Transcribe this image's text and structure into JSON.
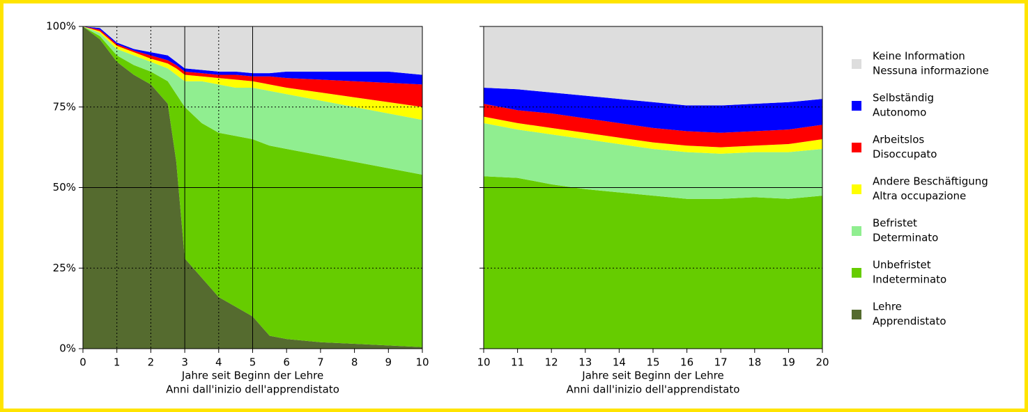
{
  "chart_data": [
    {
      "type": "stacked-area",
      "xlabel": [
        "Jahre seit Beginn der Lehre",
        "Anni dall'inizio dell'apprendistato"
      ],
      "x": [
        0,
        0.5,
        1,
        1.5,
        2,
        2.5,
        2.75,
        3,
        3.5,
        4,
        4.5,
        5,
        5.5,
        6,
        7,
        8,
        9,
        10
      ],
      "series": [
        {
          "name": [
            "Lehre",
            "Apprendistato"
          ],
          "color": "#556b2f",
          "values": [
            100,
            96,
            89,
            85,
            82,
            76,
            58,
            28,
            22,
            16,
            13,
            10,
            4,
            3,
            2,
            1.5,
            1,
            0.5
          ]
        },
        {
          "name": [
            "Unbefristet",
            "Indeterminato"
          ],
          "color": "#66cc00",
          "values": [
            0,
            1,
            2,
            3,
            4,
            7,
            21,
            47,
            48,
            51,
            53,
            55,
            59,
            59,
            58,
            56.5,
            55,
            53.5
          ]
        },
        {
          "name": [
            "Befristet",
            "Determinato"
          ],
          "color": "#90ee90",
          "values": [
            0,
            1,
            2,
            3,
            3,
            4,
            6,
            8,
            13,
            15,
            15,
            16,
            17,
            17,
            17,
            17,
            17,
            17
          ]
        },
        {
          "name": [
            "Andere Beschäftigung",
            "Altra occupazione"
          ],
          "color": "#ffff00",
          "values": [
            0,
            0.5,
            1,
            1,
            1,
            1.5,
            2,
            2,
            1.5,
            2,
            2.5,
            2,
            2,
            2,
            2.5,
            3,
            3.5,
            4
          ]
        },
        {
          "name": [
            "Arbeitslos",
            "Disoccupato"
          ],
          "color": "#ff0000",
          "values": [
            0,
            0.5,
            0.5,
            0.5,
            1,
            1,
            1,
            1,
            1,
            1,
            1.5,
            1.5,
            2.5,
            3,
            4,
            5,
            6,
            7
          ]
        },
        {
          "name": [
            "Selbständig",
            "Autonomo"
          ],
          "color": "#0000ff",
          "values": [
            0,
            0.5,
            0.5,
            0.5,
            1,
            1.5,
            1,
            1,
            1,
            1,
            1,
            1,
            1,
            2,
            2.5,
            3,
            3.5,
            3
          ]
        },
        {
          "name": [
            "Keine Information",
            "Nessuna informazione"
          ],
          "color": "#dddddd",
          "values": [
            0,
            0.5,
            5,
            7,
            8,
            9,
            11,
            13,
            13.5,
            14,
            14,
            14.5,
            14.5,
            14,
            14,
            14,
            14,
            15
          ]
        }
      ],
      "xlim": [
        0,
        10
      ],
      "xticks": [
        0,
        1,
        2,
        3,
        4,
        5,
        6,
        7,
        8,
        9,
        10
      ],
      "xgrid_styles": [
        null,
        "dotted",
        "dotted",
        "solid",
        "dotted",
        "solid",
        null,
        null,
        null,
        null,
        null
      ],
      "ylim": [
        0,
        100
      ],
      "yticks": [
        {
          "value": 0,
          "label": "0%"
        },
        {
          "value": 25,
          "label": "25%"
        },
        {
          "value": 50,
          "label": "50%"
        },
        {
          "value": 75,
          "label": "75%"
        },
        {
          "value": 100,
          "label": "100%"
        }
      ],
      "ygrid_styles": [
        null,
        "dotted",
        "solid",
        "dotted",
        null
      ],
      "legend": "right"
    },
    {
      "type": "stacked-area",
      "xlabel": [
        "Jahre seit Beginn der Lehre",
        "Anni dall'inizio dell'apprendistato"
      ],
      "x": [
        10,
        11,
        12,
        13,
        14,
        15,
        16,
        17,
        18,
        19,
        20
      ],
      "series": [
        {
          "color": "#66cc00",
          "values": [
            53.5,
            53,
            51,
            49.5,
            48.5,
            47.5,
            46.5,
            46.5,
            47,
            46.5,
            47.5
          ]
        },
        {
          "color": "#90ee90",
          "values": [
            16.5,
            15,
            15.5,
            15.5,
            15,
            14.5,
            14.5,
            14,
            14,
            14.5,
            14.5
          ]
        },
        {
          "color": "#ffff00",
          "values": [
            2,
            2,
            2,
            2,
            2,
            2,
            2,
            2,
            2,
            2.5,
            3
          ]
        },
        {
          "color": "#ff0000",
          "values": [
            4,
            4,
            4.5,
            4.5,
            4.5,
            4.5,
            4.5,
            4.5,
            4.5,
            4.5,
            4.5
          ]
        },
        {
          "color": "#0000ff",
          "values": [
            5,
            6.5,
            6.5,
            7,
            7.5,
            8,
            8,
            8.5,
            8.5,
            8.5,
            8
          ]
        },
        {
          "color": "#dddddd",
          "values": [
            19,
            19.5,
            20.5,
            21.5,
            22.5,
            23.5,
            24.5,
            24.5,
            24,
            23.5,
            22.5
          ]
        }
      ],
      "xlim": [
        10,
        20
      ],
      "xticks": [
        10,
        11,
        12,
        13,
        14,
        15,
        16,
        17,
        18,
        19,
        20
      ],
      "ylim": [
        0,
        100
      ],
      "yticks": [
        0,
        25,
        50,
        75,
        100
      ],
      "ygrid_styles": [
        null,
        "dotted",
        "solid",
        "dotted",
        null
      ],
      "ytick_labels": false
    }
  ]
}
